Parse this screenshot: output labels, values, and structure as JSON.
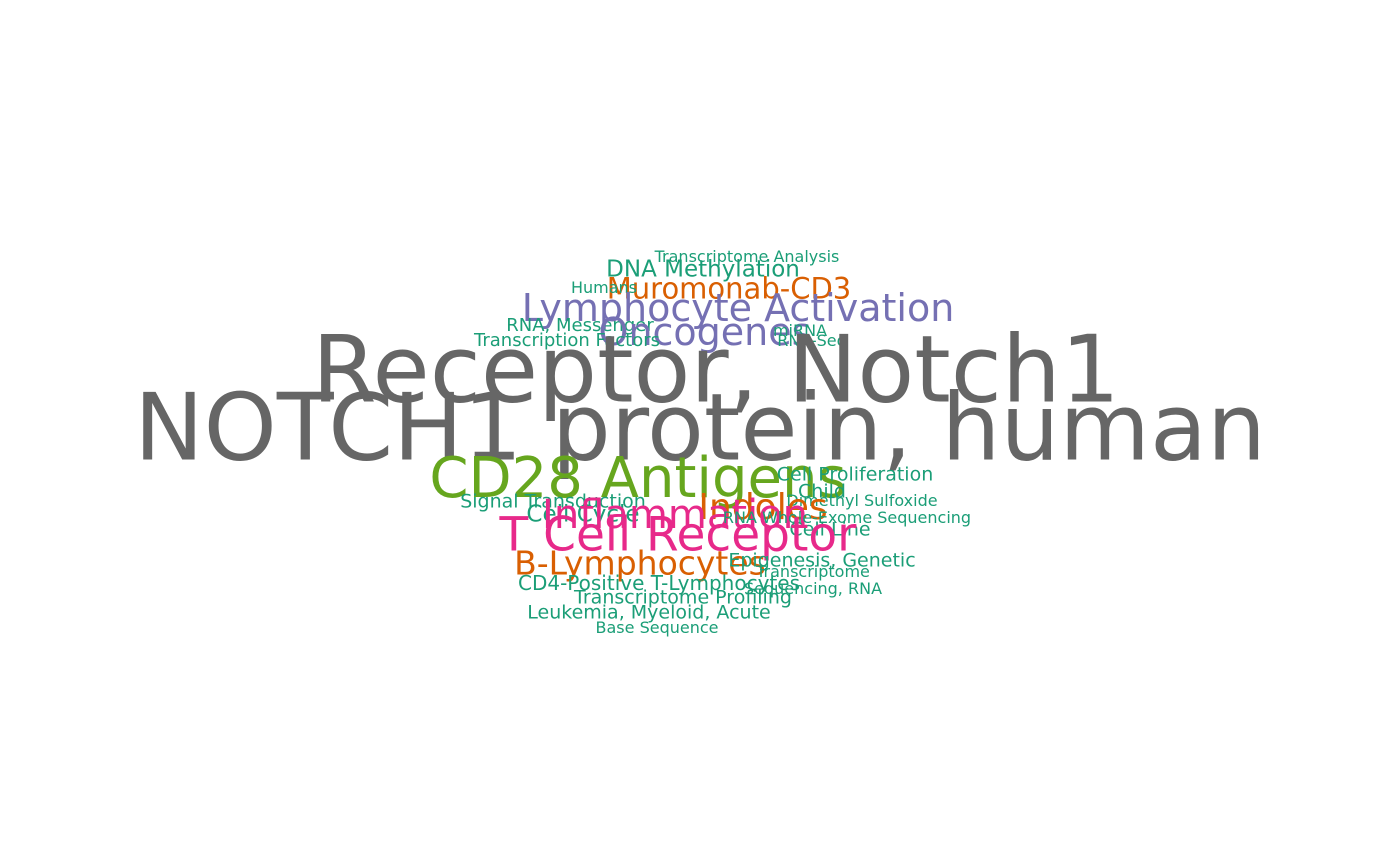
{
  "palette": {
    "gray": "#666666",
    "teal": "#1b9e77",
    "orange": "#d95f02",
    "purple": "#7570b3",
    "magenta": "#e7298a",
    "green": "#66a61e"
  },
  "words": [
    {
      "text": "Transcriptome Analysis",
      "weight": 1,
      "color": "#1b9e77"
    },
    {
      "text": "DNA Methylation",
      "weight": 2,
      "color": "#1b9e77"
    },
    {
      "text": "Muromonab-CD3",
      "weight": 3,
      "color": "#d95f02"
    },
    {
      "text": "Humans",
      "weight": 1,
      "color": "#1b9e77"
    },
    {
      "text": "Lymphocyte Activation",
      "weight": 4,
      "color": "#7570b3"
    },
    {
      "text": "RNA, Messenger",
      "weight": 1.5,
      "color": "#1b9e77"
    },
    {
      "text": "Oncogenes",
      "weight": 4,
      "color": "#7570b3"
    },
    {
      "text": "miRNA",
      "weight": 1,
      "color": "#1b9e77"
    },
    {
      "text": "Transcription Factors",
      "weight": 1.5,
      "color": "#1b9e77"
    },
    {
      "text": "RNA-Seq",
      "weight": 1,
      "color": "#1b9e77"
    },
    {
      "text": "Receptor, Notch1",
      "weight": 10,
      "color": "#666666"
    },
    {
      "text": "NOTCH1 protein, human",
      "weight": 10,
      "color": "#666666"
    },
    {
      "text": "CD28 Antigens",
      "weight": 6,
      "color": "#66a61e"
    },
    {
      "text": "Cell Proliferation",
      "weight": 1.5,
      "color": "#1b9e77"
    },
    {
      "text": "Child",
      "weight": 1.5,
      "color": "#1b9e77"
    },
    {
      "text": "Signal Transduction",
      "weight": 1.5,
      "color": "#1b9e77"
    },
    {
      "text": "Dimethyl Sulfoxide",
      "weight": 1,
      "color": "#1b9e77"
    },
    {
      "text": "Indoles",
      "weight": 3,
      "color": "#d95f02"
    },
    {
      "text": "Cell Cycle",
      "weight": 2,
      "color": "#1b9e77"
    },
    {
      "text": "Inflammation",
      "weight": 4,
      "color": "#e7298a"
    },
    {
      "text": "RNA Whole-Exome Sequencing",
      "weight": 1,
      "color": "#1b9e77"
    },
    {
      "text": "Cell Line",
      "weight": 1.5,
      "color": "#1b9e77"
    },
    {
      "text": "T Cell Receptor",
      "weight": 5,
      "color": "#e7298a"
    },
    {
      "text": "B-Lymphocytes",
      "weight": 3,
      "color": "#d95f02"
    },
    {
      "text": "Epigenesis, Genetic",
      "weight": 1.5,
      "color": "#1b9e77"
    },
    {
      "text": "Transcriptome",
      "weight": 1,
      "color": "#1b9e77"
    },
    {
      "text": "CD4-Positive T-Lymphocytes",
      "weight": 1.5,
      "color": "#1b9e77"
    },
    {
      "text": "Sequencing, RNA",
      "weight": 1,
      "color": "#1b9e77"
    },
    {
      "text": "Transcriptome Profiling",
      "weight": 1.5,
      "color": "#1b9e77"
    },
    {
      "text": "Leukemia, Myeloid, Acute",
      "weight": 1.5,
      "color": "#1b9e77"
    },
    {
      "text": "Base Sequence",
      "weight": 1,
      "color": "#1b9e77"
    }
  ]
}
